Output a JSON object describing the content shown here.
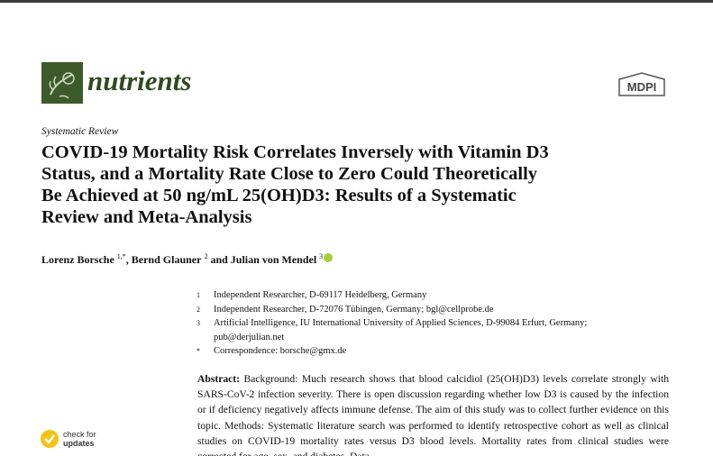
{
  "header": {
    "journal": "nutrients",
    "publisher": "MDPI"
  },
  "article_type": "Systematic Review",
  "title_lines": [
    "COVID-19 Mortality Risk Correlates Inversely with Vitamin D3",
    "Status, and a Mortality Rate Close to Zero Could Theoretically",
    "Be Achieved at 50 ng/mL 25(OH)D3: Results of a Systematic",
    "Review and Meta-Analysis"
  ],
  "authors": [
    {
      "name": "Lorenz Borsche",
      "mark": "1,*"
    },
    {
      "name": "Bernd Glauner",
      "mark": "2"
    },
    {
      "name": "Julian von Mendel",
      "mark": "3"
    }
  ],
  "author_separators": [
    ", ",
    " and "
  ],
  "affiliations": [
    {
      "marker": "1",
      "text": "Independent Researcher, D-69117 Heidelberg, Germany"
    },
    {
      "marker": "2",
      "text": "Independent Researcher, D-72076 Tübingen, Germany; bgl@cellprobe.de"
    },
    {
      "marker": "3",
      "text": "Artificial Intelligence, IU International University of Applied Sciences, D-99084 Erfurt, Germany; pub@derjulian.net"
    },
    {
      "marker": "*",
      "text": "Correspondence: borsche@gmx.de"
    }
  ],
  "abstract": {
    "label": "Abstract:",
    "text": "Background: Much research shows that blood calcidiol (25(OH)D3) levels correlate strongly with SARS-CoV-2 infection severity. There is open discussion regarding whether low D3 is caused by the infection or if deficiency negatively affects immune defense. The aim of this study was to collect further evidence on this topic. Methods: Systematic literature search was performed to identify retrospective cohort as well as clinical studies on COVID-19 mortality rates versus D3 blood levels. Mortality rates from clinical studies were corrected for age, sex, and diabetes. Data"
  },
  "check_for_updates": [
    "check for",
    "updates"
  ]
}
